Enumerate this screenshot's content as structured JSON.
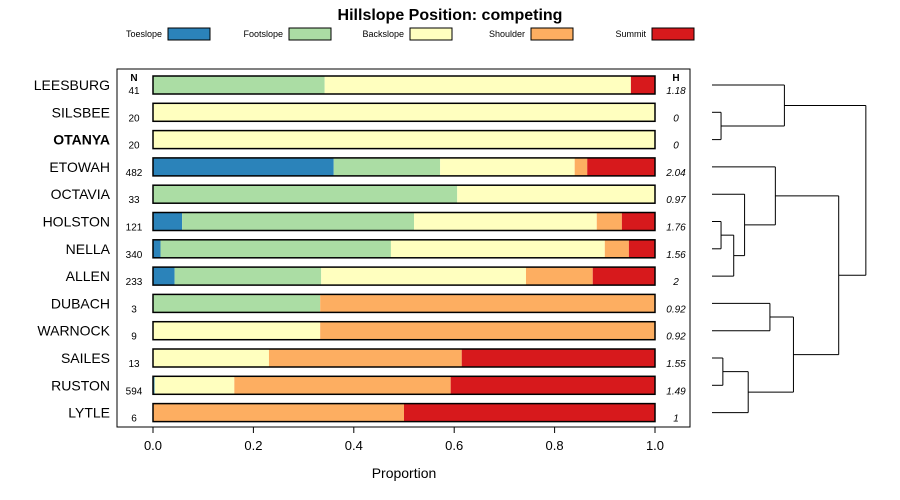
{
  "chart_data": {
    "type": "bar",
    "stacked": true,
    "orientation": "horizontal",
    "title": "Hillslope Position: competing",
    "xlabel": "Proportion",
    "ylabel": "",
    "xlim": [
      0,
      1
    ],
    "xticks": [
      "0.0",
      "0.2",
      "0.4",
      "0.6",
      "0.8",
      "1.0"
    ],
    "n_header": "N",
    "h_header": "H",
    "legend": [
      {
        "name": "Toeslope",
        "color": "#2b83ba"
      },
      {
        "name": "Footslope",
        "color": "#abdda4"
      },
      {
        "name": "Backslope",
        "color": "#ffffbf"
      },
      {
        "name": "Shoulder",
        "color": "#fdae61"
      },
      {
        "name": "Summit",
        "color": "#d7191c"
      }
    ],
    "categories": [
      "LEESBURG",
      "SILSBEE",
      "OTANYA",
      "ETOWAH",
      "OCTAVIA",
      "HOLSTON",
      "NELLA",
      "ALLEN",
      "DUBACH",
      "WARNOCK",
      "SAILES",
      "RUSTON",
      "LYTLE"
    ],
    "highlight": "OTANYA",
    "n": [
      "41",
      "20",
      "20",
      "482",
      "33",
      "121",
      "340",
      "233",
      "3",
      "9",
      "13",
      "594",
      "6"
    ],
    "h": [
      "1.18",
      "0",
      "0",
      "2.04",
      "0.97",
      "1.76",
      "1.56",
      "2",
      "0.92",
      "0.92",
      "1.55",
      "1.49",
      "1"
    ],
    "series": [
      {
        "name": "Toeslope",
        "values": [
          0,
          0,
          0,
          0.36,
          0,
          0.058,
          0.015,
          0.043,
          0,
          0,
          0,
          0.003,
          0
        ]
      },
      {
        "name": "Footslope",
        "values": [
          0.342,
          0,
          0,
          0.212,
          0.606,
          0.462,
          0.459,
          0.292,
          0.333,
          0,
          0,
          0,
          0
        ]
      },
      {
        "name": "Backslope",
        "values": [
          0.61,
          1,
          1,
          0.268,
          0.394,
          0.364,
          0.426,
          0.408,
          0,
          0.333,
          0.231,
          0.159,
          0
        ]
      },
      {
        "name": "Shoulder",
        "values": [
          0,
          0,
          0,
          0.025,
          0,
          0.05,
          0.048,
          0.133,
          0.667,
          0.667,
          0.384,
          0.431,
          0.5
        ]
      },
      {
        "name": "Summit",
        "values": [
          0.048,
          0,
          0,
          0.135,
          0,
          0.066,
          0.052,
          0.124,
          0,
          0,
          0.385,
          0.407,
          0.5
        ]
      }
    ],
    "dendrogram": {
      "leaf_order": [
        "LEESBURG",
        "SILSBEE",
        "OTANYA",
        "ETOWAH",
        "OCTAVIA",
        "HOLSTON",
        "NELLA",
        "ALLEN",
        "DUBACH",
        "WARNOCK",
        "SAILES",
        "RUSTON",
        "LYTLE"
      ],
      "merges": [
        {
          "a": "SILSBEE",
          "b": "OTANYA",
          "height": 0.05
        },
        {
          "a": "LEESBURG",
          "b": "c1",
          "height": 0.4
        },
        {
          "a": "HOLSTON",
          "b": "NELLA",
          "height": 0.05
        },
        {
          "a": "c3",
          "b": "ALLEN",
          "height": 0.12
        },
        {
          "a": "OCTAVIA",
          "b": "c4",
          "height": 0.18
        },
        {
          "a": "ETOWAH",
          "b": "c5",
          "height": 0.35
        },
        {
          "a": "DUBACH",
          "b": "WARNOCK",
          "height": 0.32
        },
        {
          "a": "SAILES",
          "b": "RUSTON",
          "height": 0.06
        },
        {
          "a": "c8",
          "b": "LYTLE",
          "height": 0.2
        },
        {
          "a": "c7",
          "b": "c9",
          "height": 0.45
        },
        {
          "a": "c6",
          "b": "c10",
          "height": 0.7
        },
        {
          "a": "c2",
          "b": "c11",
          "height": 0.85
        }
      ]
    }
  }
}
